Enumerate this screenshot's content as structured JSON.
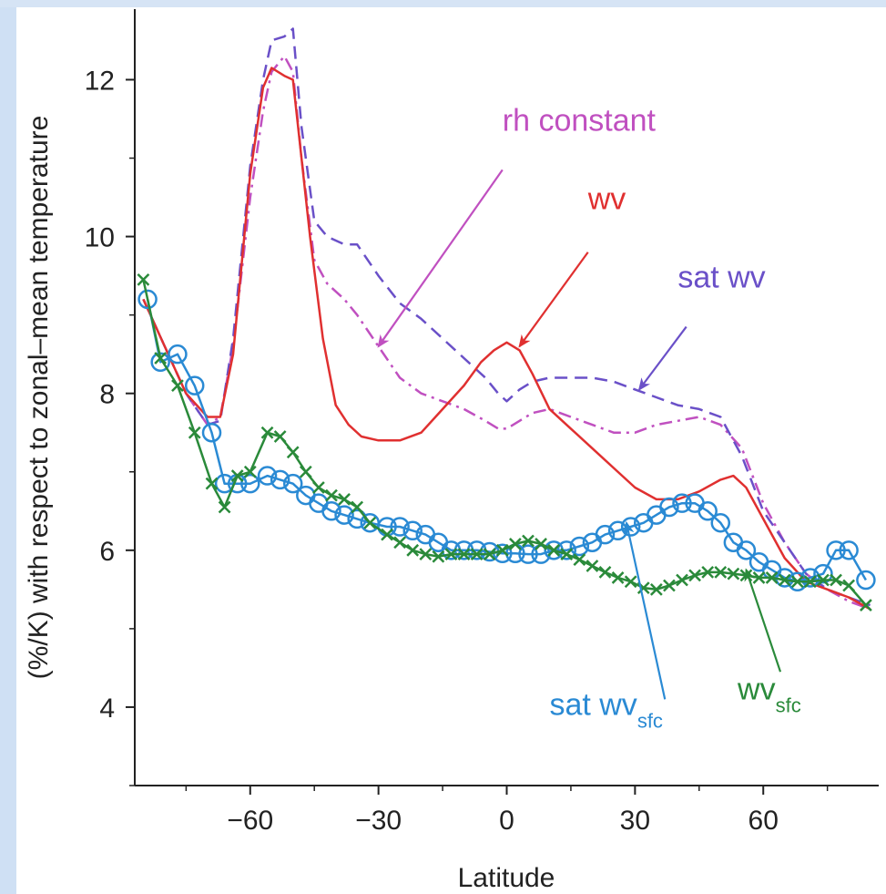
{
  "chart_data": {
    "type": "line",
    "title": "",
    "xlabel": "Latitude",
    "ylabel": "(%/K) with respect to zonal–mean temperature",
    "xlim": [
      -87,
      87
    ],
    "ylim": [
      3,
      12.9
    ],
    "xticks": [
      -60,
      -30,
      0,
      30,
      60
    ],
    "xtick_labels": [
      "−60",
      "−30",
      "0",
      "30",
      "60"
    ],
    "yticks": [
      4,
      6,
      8,
      10,
      12
    ],
    "grid": false,
    "series": [
      {
        "name": "rh constant",
        "color": "#c050c0",
        "dash": "dashdot",
        "x": [
          -85,
          -80,
          -75,
          -70,
          -67,
          -64,
          -60,
          -57,
          -55,
          -52,
          -50,
          -48,
          -45,
          -42,
          -38,
          -35,
          -30,
          -25,
          -20,
          -15,
          -10,
          -5,
          -2,
          0,
          3,
          6,
          10,
          15,
          20,
          25,
          30,
          35,
          40,
          45,
          50,
          55,
          60,
          65,
          70,
          75,
          80,
          85
        ],
        "y": [
          9.2,
          8.6,
          8.0,
          7.6,
          7.7,
          8.6,
          10.5,
          11.6,
          12.1,
          12.3,
          12.1,
          11.0,
          9.7,
          9.4,
          9.2,
          9.0,
          8.6,
          8.2,
          8.0,
          7.9,
          7.8,
          7.65,
          7.55,
          7.55,
          7.65,
          7.75,
          7.8,
          7.7,
          7.6,
          7.5,
          7.5,
          7.6,
          7.65,
          7.7,
          7.6,
          7.3,
          6.6,
          6.1,
          5.7,
          5.5,
          5.35,
          5.25
        ]
      },
      {
        "name": "sat wv",
        "color": "#6a50c8",
        "dash": "dashed",
        "x": [
          -85,
          -80,
          -75,
          -70,
          -67,
          -64,
          -60,
          -57,
          -55,
          -52,
          -50,
          -48,
          -45,
          -42,
          -38,
          -35,
          -30,
          -25,
          -20,
          -15,
          -10,
          -5,
          -2,
          0,
          3,
          6,
          10,
          15,
          20,
          25,
          30,
          35,
          40,
          45,
          50,
          55,
          60,
          65,
          70,
          75,
          80,
          85
        ],
        "y": [
          9.2,
          8.6,
          8.0,
          7.6,
          7.65,
          8.7,
          10.9,
          12.0,
          12.5,
          12.55,
          12.65,
          11.4,
          10.2,
          10.0,
          9.9,
          9.9,
          9.5,
          9.15,
          8.95,
          8.7,
          8.45,
          8.2,
          8.0,
          7.9,
          8.05,
          8.15,
          8.2,
          8.2,
          8.2,
          8.15,
          8.05,
          7.95,
          7.85,
          7.8,
          7.7,
          7.2,
          6.5,
          6.1,
          5.7,
          5.5,
          5.4,
          5.3
        ]
      },
      {
        "name": "wv",
        "color": "#e03030",
        "dash": "solid",
        "x": [
          -85,
          -80,
          -75,
          -70,
          -67,
          -64,
          -60,
          -57,
          -55,
          -52,
          -50,
          -48,
          -46,
          -43,
          -40,
          -37,
          -34,
          -30,
          -25,
          -20,
          -15,
          -10,
          -6,
          -3,
          0,
          3,
          6,
          10,
          15,
          20,
          25,
          30,
          35,
          40,
          45,
          50,
          53,
          56,
          60,
          65,
          70,
          75,
          80,
          85
        ],
        "y": [
          9.2,
          8.6,
          8.0,
          7.7,
          7.7,
          8.5,
          10.8,
          11.9,
          12.15,
          12.05,
          12.0,
          11.0,
          10.0,
          8.7,
          7.85,
          7.6,
          7.45,
          7.4,
          7.4,
          7.5,
          7.8,
          8.1,
          8.4,
          8.55,
          8.65,
          8.55,
          8.25,
          7.8,
          7.55,
          7.3,
          7.05,
          6.8,
          6.65,
          6.65,
          6.75,
          6.9,
          6.95,
          6.8,
          6.4,
          5.9,
          5.6,
          5.5,
          5.4,
          5.25
        ]
      },
      {
        "name": "sat wv sfc",
        "color": "#2a8ad4",
        "dash": "solid",
        "marker": "circle",
        "x": [
          -84,
          -81,
          -77,
          -73,
          -69,
          -66,
          -63,
          -60,
          -56,
          -53,
          -50,
          -47,
          -44,
          -41,
          -38,
          -35,
          -32,
          -28,
          -25,
          -22,
          -19,
          -16,
          -13,
          -10,
          -7,
          -4,
          -1,
          2,
          5,
          8,
          11,
          14,
          17,
          20,
          23,
          26,
          29,
          32,
          35,
          38,
          41,
          44,
          47,
          50,
          53,
          56,
          59,
          62,
          65,
          68,
          71,
          74,
          77,
          80,
          84
        ],
        "y": [
          9.2,
          8.4,
          8.5,
          8.1,
          7.5,
          6.85,
          6.85,
          6.85,
          6.95,
          6.9,
          6.85,
          6.7,
          6.6,
          6.5,
          6.45,
          6.4,
          6.35,
          6.3,
          6.3,
          6.25,
          6.2,
          6.1,
          6.0,
          6.0,
          6.0,
          5.98,
          5.96,
          5.96,
          5.95,
          5.95,
          6.0,
          6.0,
          6.05,
          6.1,
          6.2,
          6.25,
          6.3,
          6.35,
          6.45,
          6.55,
          6.6,
          6.6,
          6.5,
          6.35,
          6.1,
          6.0,
          5.85,
          5.75,
          5.65,
          5.6,
          5.65,
          5.7,
          6.0,
          6.0,
          5.62
        ]
      },
      {
        "name": "wv sfc",
        "color": "#2a8a3a",
        "dash": "solid",
        "marker": "x",
        "x": [
          -85,
          -81,
          -77,
          -73,
          -69,
          -66,
          -63,
          -60,
          -56,
          -53,
          -50,
          -47,
          -44,
          -41,
          -38,
          -35,
          -32,
          -28,
          -25,
          -22,
          -19,
          -16,
          -13,
          -10,
          -7,
          -4,
          -1,
          2,
          5,
          8,
          11,
          14,
          17,
          20,
          23,
          26,
          29,
          32,
          35,
          38,
          41,
          44,
          47,
          50,
          53,
          56,
          59,
          62,
          65,
          68,
          71,
          74,
          77,
          80,
          84
        ],
        "y": [
          9.45,
          8.45,
          8.1,
          7.5,
          6.85,
          6.55,
          6.95,
          7.0,
          7.5,
          7.45,
          7.25,
          7.0,
          6.8,
          6.7,
          6.65,
          6.55,
          6.35,
          6.2,
          6.1,
          6.0,
          5.95,
          5.92,
          5.95,
          5.95,
          5.95,
          5.95,
          6.0,
          6.08,
          6.12,
          6.08,
          6.0,
          5.95,
          5.88,
          5.8,
          5.72,
          5.65,
          5.6,
          5.52,
          5.5,
          5.55,
          5.62,
          5.68,
          5.72,
          5.72,
          5.7,
          5.68,
          5.65,
          5.65,
          5.62,
          5.6,
          5.6,
          5.62,
          5.62,
          5.55,
          5.3
        ]
      }
    ],
    "annotations": [
      {
        "text": "rh constant",
        "color": "#c050c0",
        "text_at": [
          -1,
          11.35
        ],
        "arrow_from": [
          -1,
          10.85
        ],
        "arrow_to": [
          -30,
          8.6
        ]
      },
      {
        "text": "wv",
        "color": "#e03030",
        "text_at": [
          19,
          10.35
        ],
        "arrow_from": [
          19,
          9.8
        ],
        "arrow_to": [
          3,
          8.6
        ]
      },
      {
        "text": "sat wv",
        "color": "#6a50c8",
        "text_at": [
          40,
          9.35
        ],
        "arrow_from": [
          42,
          8.85
        ],
        "arrow_to": [
          31,
          8.05
        ]
      },
      {
        "text": "sat wv",
        "subscript": "sfc",
        "color": "#2a8ad4",
        "text_at": [
          10,
          3.9
        ],
        "arrow_from": [
          37,
          4.1
        ],
        "arrow_to": [
          28,
          6.35
        ]
      },
      {
        "text": "wv",
        "subscript": "sfc",
        "color": "#2a8a3a",
        "text_at": [
          54,
          4.1
        ],
        "arrow_from": [
          64,
          4.45
        ],
        "arrow_to": [
          56,
          5.75
        ]
      }
    ]
  }
}
